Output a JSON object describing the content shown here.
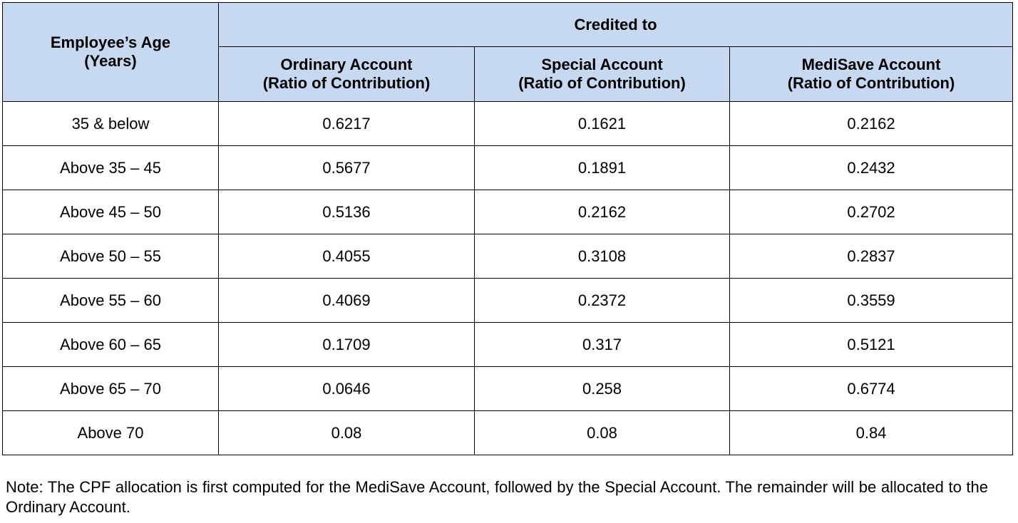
{
  "table": {
    "header": {
      "age": [
        "Employee’s Age",
        "(Years)"
      ],
      "group": "Credited to",
      "columns": [
        [
          "Ordinary Account",
          "(Ratio of Contribution)"
        ],
        [
          "Special Account",
          "(Ratio of Contribution)"
        ],
        [
          "MediSave Account",
          "(Ratio of Contribution)"
        ]
      ]
    },
    "rows": [
      [
        "35 & below",
        "0.6217",
        "0.1621",
        "0.2162"
      ],
      [
        "Above 35 – 45",
        "0.5677",
        "0.1891",
        "0.2432"
      ],
      [
        "Above 45 – 50",
        "0.5136",
        "0.2162",
        "0.2702"
      ],
      [
        "Above 50 – 55",
        "0.4055",
        "0.3108",
        "0.2837"
      ],
      [
        "Above 55 – 60",
        "0.4069",
        "0.2372",
        "0.3559"
      ],
      [
        "Above 60 – 65",
        "0.1709",
        "0.317",
        "0.5121"
      ],
      [
        "Above 65 – 70",
        "0.0646",
        "0.258",
        "0.6774"
      ],
      [
        "Above 70",
        "0.08",
        "0.08",
        "0.84"
      ]
    ]
  },
  "note": "Note: The CPF allocation is first computed for the MediSave Account, followed by the Special Account. The remainder will be allocated to the Ordinary Account."
}
